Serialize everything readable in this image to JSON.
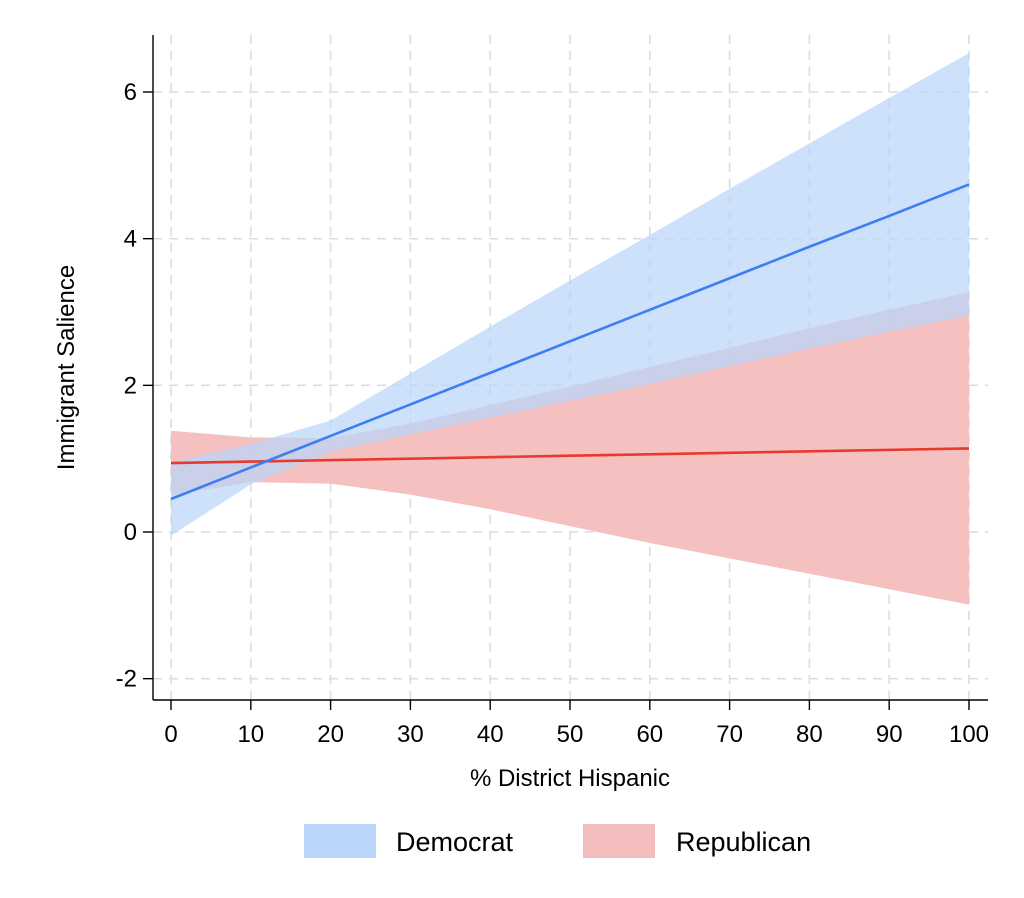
{
  "chart_data": {
    "type": "line",
    "xlabel": "% District Hispanic",
    "ylabel": "Immigrant Salience",
    "xlim": [
      -2,
      102.5
    ],
    "ylim": [
      -2.3,
      6.8
    ],
    "xticks": [
      0,
      10,
      20,
      30,
      40,
      50,
      60,
      70,
      80,
      90,
      100
    ],
    "yticks": [
      -2,
      0,
      2,
      4,
      6
    ],
    "grid": true,
    "legend_position": "bottom",
    "series": [
      {
        "name": "Democrat",
        "line_color": "#3d7ff2",
        "band_color": "#bad6fa",
        "x": [
          0,
          10,
          20,
          30,
          40,
          50,
          60,
          70,
          80,
          90,
          100
        ],
        "estimate": [
          0.45,
          0.88,
          1.31,
          1.74,
          2.17,
          2.6,
          3.03,
          3.46,
          3.89,
          4.31,
          4.74
        ],
        "ci_lower": [
          -0.05,
          0.65,
          1.1,
          1.33,
          1.56,
          1.79,
          2.02,
          2.26,
          2.5,
          2.73,
          2.95
        ],
        "ci_upper": [
          0.95,
          1.2,
          1.52,
          2.16,
          2.8,
          3.43,
          4.05,
          4.68,
          5.3,
          5.92,
          6.53
        ]
      },
      {
        "name": "Republican",
        "line_color": "#e8392c",
        "band_color": "#f4bdbd",
        "x": [
          0,
          10,
          20,
          30,
          40,
          50,
          60,
          70,
          80,
          90,
          100
        ],
        "estimate": [
          0.94,
          0.96,
          0.98,
          1.0,
          1.02,
          1.04,
          1.06,
          1.08,
          1.1,
          1.12,
          1.14
        ],
        "ci_lower": [
          0.5,
          0.68,
          0.66,
          0.51,
          0.31,
          0.08,
          -0.15,
          -0.36,
          -0.57,
          -0.78,
          -0.99
        ],
        "ci_upper": [
          1.38,
          1.29,
          1.28,
          1.48,
          1.73,
          1.98,
          2.25,
          2.51,
          2.78,
          3.03,
          3.27
        ]
      }
    ]
  }
}
